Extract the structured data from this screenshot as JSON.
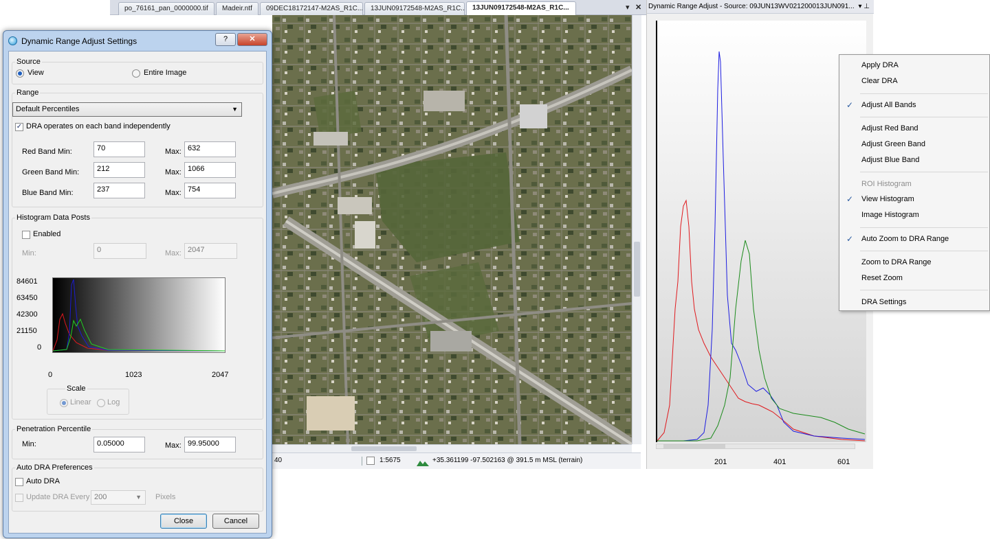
{
  "tabs": [
    {
      "label": "po_76161_pan_0000000.tif",
      "active": false
    },
    {
      "label": "Madeir.ntf",
      "active": false
    },
    {
      "label": "09DEC18172147-M2AS_R1C...",
      "active": false
    },
    {
      "label": "13JUN09172548-M2AS_R1C...",
      "active": false
    },
    {
      "label": "13JUN09172548-M2AS_R1C...",
      "active": true
    }
  ],
  "tab_controls": {
    "dropdown_glyph": "▾",
    "close_glyph": "✕"
  },
  "statusbar": {
    "left_value": "40",
    "scale": "1:5675",
    "coordinates": "+35.361199 -97.502163 @ 391.5 m MSL (terrain)"
  },
  "hist_panel": {
    "title": "Dynamic Range Adjust - Source:  09JUN13WV021200013JUN091...",
    "pin_glyph": "▾ ⊥",
    "x_ticks": [
      "201",
      "401",
      "601"
    ]
  },
  "context_menu": {
    "items": [
      {
        "label": "Apply DRA",
        "checked": false,
        "disabled": false
      },
      {
        "label": "Clear DRA",
        "checked": false,
        "disabled": false
      },
      {
        "label": "Adjust All Bands",
        "checked": true,
        "disabled": false
      },
      {
        "label": "Adjust Red Band",
        "checked": false,
        "disabled": false
      },
      {
        "label": "Adjust Green Band",
        "checked": false,
        "disabled": false
      },
      {
        "label": "Adjust Blue Band",
        "checked": false,
        "disabled": false
      },
      {
        "label": "ROI Histogram",
        "checked": false,
        "disabled": true
      },
      {
        "label": "View Histogram",
        "checked": true,
        "disabled": false
      },
      {
        "label": "Image Histogram",
        "checked": false,
        "disabled": false
      },
      {
        "label": "Auto Zoom to DRA Range",
        "checked": true,
        "disabled": false
      },
      {
        "label": "Zoom to DRA Range",
        "checked": false,
        "disabled": false
      },
      {
        "label": "Reset Zoom",
        "checked": false,
        "disabled": false
      },
      {
        "label": "DRA Settings",
        "checked": false,
        "disabled": false
      }
    ]
  },
  "dialog": {
    "title": "Dynamic Range Adjust Settings",
    "help_glyph": "?",
    "close_glyph": "✕",
    "source": {
      "label": "Source",
      "view_label": "View",
      "entire_label": "Entire Image",
      "selected": "View"
    },
    "range": {
      "label": "Range",
      "preset": "Default Percentiles",
      "independent_label": "DRA operates on each band independently",
      "independent_checked": true,
      "red_label": "Red Band Min:",
      "red_min": "70",
      "red_max": "632",
      "green_label": "Green Band Min:",
      "green_min": "212",
      "green_max": "1066",
      "blue_label": "Blue Band Min:",
      "blue_min": "237",
      "blue_max": "754",
      "max_label": "Max:"
    },
    "histogram_posts": {
      "label": "Histogram Data Posts",
      "enabled_label": "Enabled",
      "enabled_checked": false,
      "min_label": "Min:",
      "min_value": "0",
      "max_label": "Max:",
      "max_value": "2047",
      "y_ticks": [
        "84601",
        "63450",
        "42300",
        "21150",
        "0"
      ],
      "x_ticks": [
        "0",
        "1023",
        "2047"
      ],
      "scale_label": "Scale",
      "linear_label": "Linear",
      "log_label": "Log",
      "scale_selected": "Linear"
    },
    "penetration": {
      "label": "Penetration Percentile",
      "min_label": "Min:",
      "min_value": "0.05000",
      "max_label": "Max:",
      "max_value": "99.95000"
    },
    "auto_dra": {
      "label": "Auto DRA Preferences",
      "auto_label": "Auto DRA",
      "auto_checked": false,
      "update_label": "Update DRA Every",
      "update_value": "200",
      "pixels_label": "Pixels"
    },
    "close_button": "Close",
    "cancel_button": "Cancel"
  }
}
